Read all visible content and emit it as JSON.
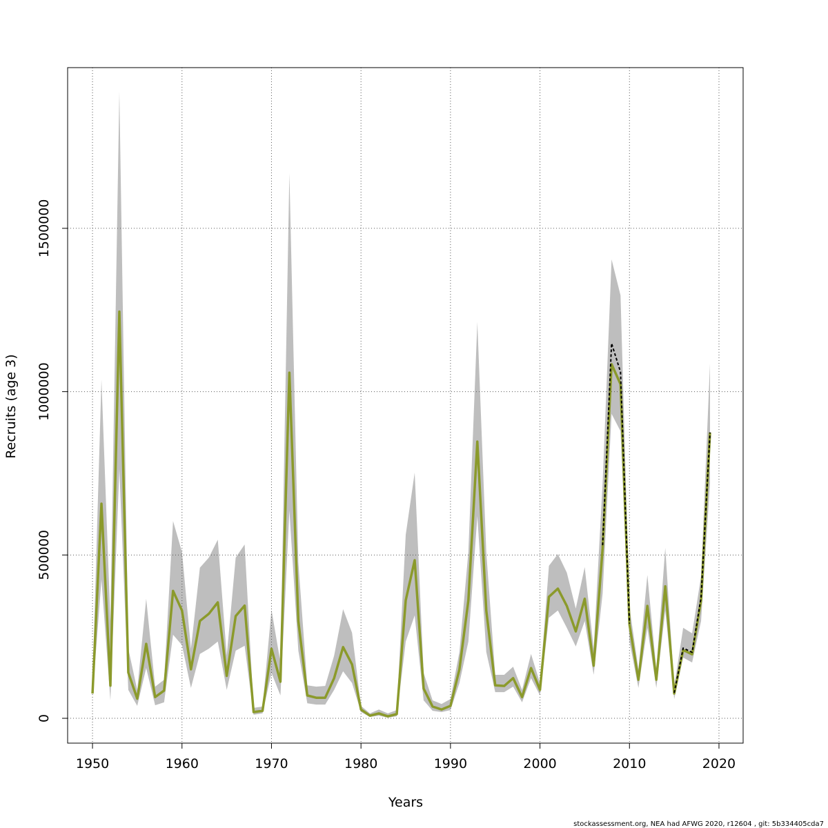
{
  "chart_data": {
    "type": "line",
    "x_label": "Years",
    "y_label": "Recruits (age 3)",
    "footer": "stockassessment.org, NEA had AFWG 2020, r12604 , git: 5b334405cda7",
    "x": [
      1950,
      1951,
      1952,
      1953,
      1954,
      1955,
      1956,
      1957,
      1958,
      1959,
      1960,
      1961,
      1962,
      1963,
      1964,
      1965,
      1966,
      1967,
      1968,
      1969,
      1970,
      1971,
      1972,
      1973,
      1974,
      1975,
      1976,
      1977,
      1978,
      1979,
      1980,
      1981,
      1982,
      1983,
      1984,
      1985,
      1986,
      1987,
      1988,
      1989,
      1990,
      1991,
      1992,
      1993,
      1994,
      1995,
      1996,
      1997,
      1998,
      1999,
      2000,
      2001,
      2002,
      2003,
      2004,
      2005,
      2006,
      2007,
      2008,
      2009,
      2010,
      2011,
      2012,
      2013,
      2014,
      2015,
      2016,
      2017,
      2018,
      2019
    ],
    "band": {
      "color": "#bebebe",
      "upper": [
        108000,
        1037000,
        298000,
        1919000,
        213000,
        87000,
        366000,
        97000,
        118000,
        604000,
        509000,
        213000,
        461000,
        492000,
        547000,
        192000,
        492000,
        532000,
        32000,
        36000,
        332000,
        171000,
        1669000,
        478000,
        101000,
        97000,
        99000,
        192000,
        334000,
        262000,
        38000,
        15000,
        27000,
        15000,
        25000,
        562000,
        752000,
        139000,
        55000,
        44000,
        59000,
        203000,
        509000,
        1213000,
        509000,
        133000,
        133000,
        158000,
        87000,
        197000,
        108000,
        467000,
        503000,
        446000,
        336000,
        463000,
        213000,
        720000,
        1405000,
        1295000,
        340000,
        150000,
        439000,
        150000,
        522000,
        97000,
        277000,
        260000,
        435000,
        1086000
      ],
      "lower": [
        66000,
        425000,
        55000,
        763000,
        87000,
        38000,
        154000,
        40000,
        49000,
        256000,
        224000,
        93000,
        197000,
        213000,
        235000,
        87000,
        207000,
        222000,
        11000,
        15000,
        139000,
        70000,
        636000,
        207000,
        46000,
        42000,
        42000,
        87000,
        144000,
        108000,
        19000,
        4000,
        8000,
        2000,
        6000,
        235000,
        315000,
        55000,
        23000,
        19000,
        25000,
        108000,
        235000,
        619000,
        203000,
        80000,
        80000,
        97000,
        49000,
        123000,
        70000,
        308000,
        330000,
        277000,
        220000,
        298000,
        133000,
        382000,
        932000,
        879000,
        235000,
        93000,
        277000,
        93000,
        330000,
        59000,
        186000,
        171000,
        298000,
        720000
      ]
    },
    "series": [
      {
        "color": "#8b9a2b",
        "style": "solid",
        "values": [
          76000,
          657000,
          100000,
          1245000,
          140000,
          60000,
          228000,
          65000,
          85000,
          390000,
          330000,
          150000,
          298000,
          320000,
          355000,
          130000,
          313000,
          345000,
          19000,
          23000,
          213000,
          112000,
          1058000,
          298000,
          70000,
          63000,
          63000,
          123000,
          218000,
          165000,
          27000,
          8000,
          15000,
          6000,
          13000,
          361000,
          484000,
          91000,
          36000,
          27000,
          38000,
          150000,
          361000,
          847000,
          330000,
          101000,
          99000,
          123000,
          65000,
          154000,
          87000,
          372000,
          397000,
          344000,
          266000,
          366000,
          161000,
          520000,
          1084000,
          1023000,
          287000,
          118000,
          344000,
          118000,
          404000,
          76000,
          209000,
          196000,
          361000,
          875000
        ]
      },
      {
        "color": "#000000",
        "style": "dashed",
        "values": [
          null,
          null,
          null,
          null,
          null,
          null,
          null,
          null,
          null,
          null,
          null,
          null,
          null,
          null,
          null,
          null,
          null,
          null,
          null,
          null,
          null,
          null,
          null,
          null,
          null,
          null,
          null,
          null,
          null,
          null,
          null,
          null,
          null,
          null,
          null,
          null,
          null,
          null,
          null,
          null,
          null,
          null,
          null,
          null,
          null,
          null,
          null,
          null,
          null,
          null,
          null,
          null,
          null,
          null,
          null,
          null,
          null,
          530000,
          1148000,
          1060000,
          290000,
          null,
          null,
          null,
          null,
          78000,
          215000,
          202000,
          370000,
          875000
        ]
      }
    ],
    "xlim": [
      1947.22,
      2022.7
    ],
    "ylim": [
      -76000,
      1992000
    ],
    "xticks": [
      1950,
      1960,
      1970,
      1980,
      1990,
      2000,
      2010,
      2020
    ],
    "yticks": [
      0,
      500000,
      1000000,
      1500000
    ],
    "grid": true
  }
}
